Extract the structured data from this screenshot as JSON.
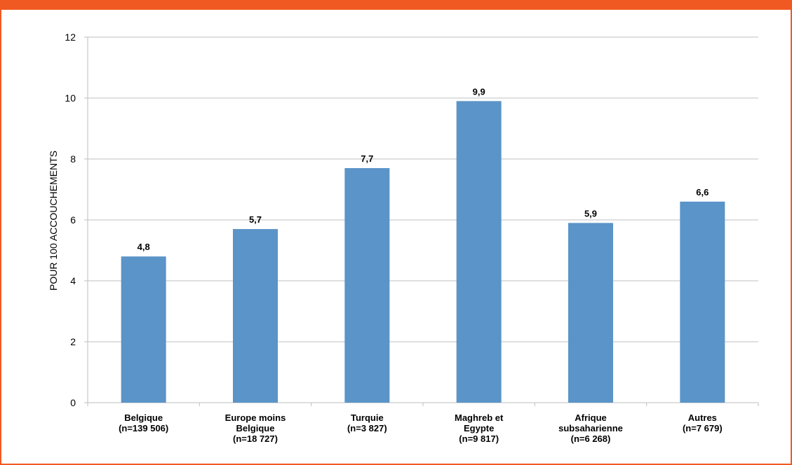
{
  "header": {
    "title": ""
  },
  "colors": {
    "bar": "#5b94c8",
    "frame": "#f05a22",
    "grid": "#bfbfbf"
  },
  "chart_data": {
    "type": "bar",
    "title": "",
    "xlabel": "",
    "ylabel": "POUR 100 ACCOUCHEMENTS",
    "ylim": [
      0,
      12
    ],
    "yticks": [
      0,
      2,
      4,
      6,
      8,
      10,
      12
    ],
    "grid": true,
    "categories": [
      [
        "Belgique",
        "(n=139 506)"
      ],
      [
        "Europe moins",
        "Belgique",
        "(n=18 727)"
      ],
      [
        "Turquie",
        "(n=3 827)"
      ],
      [
        "Maghreb et",
        "Egypte",
        "(n=9 817)"
      ],
      [
        "Afrique",
        "subsaharienne",
        "(n=6 268)"
      ],
      [
        "Autres",
        "(n=7 679)"
      ]
    ],
    "values": [
      4.8,
      5.7,
      7.7,
      9.9,
      5.9,
      6.6
    ],
    "value_labels": [
      "4,8",
      "5,7",
      "7,7",
      "9,9",
      "5,9",
      "6,6"
    ]
  }
}
